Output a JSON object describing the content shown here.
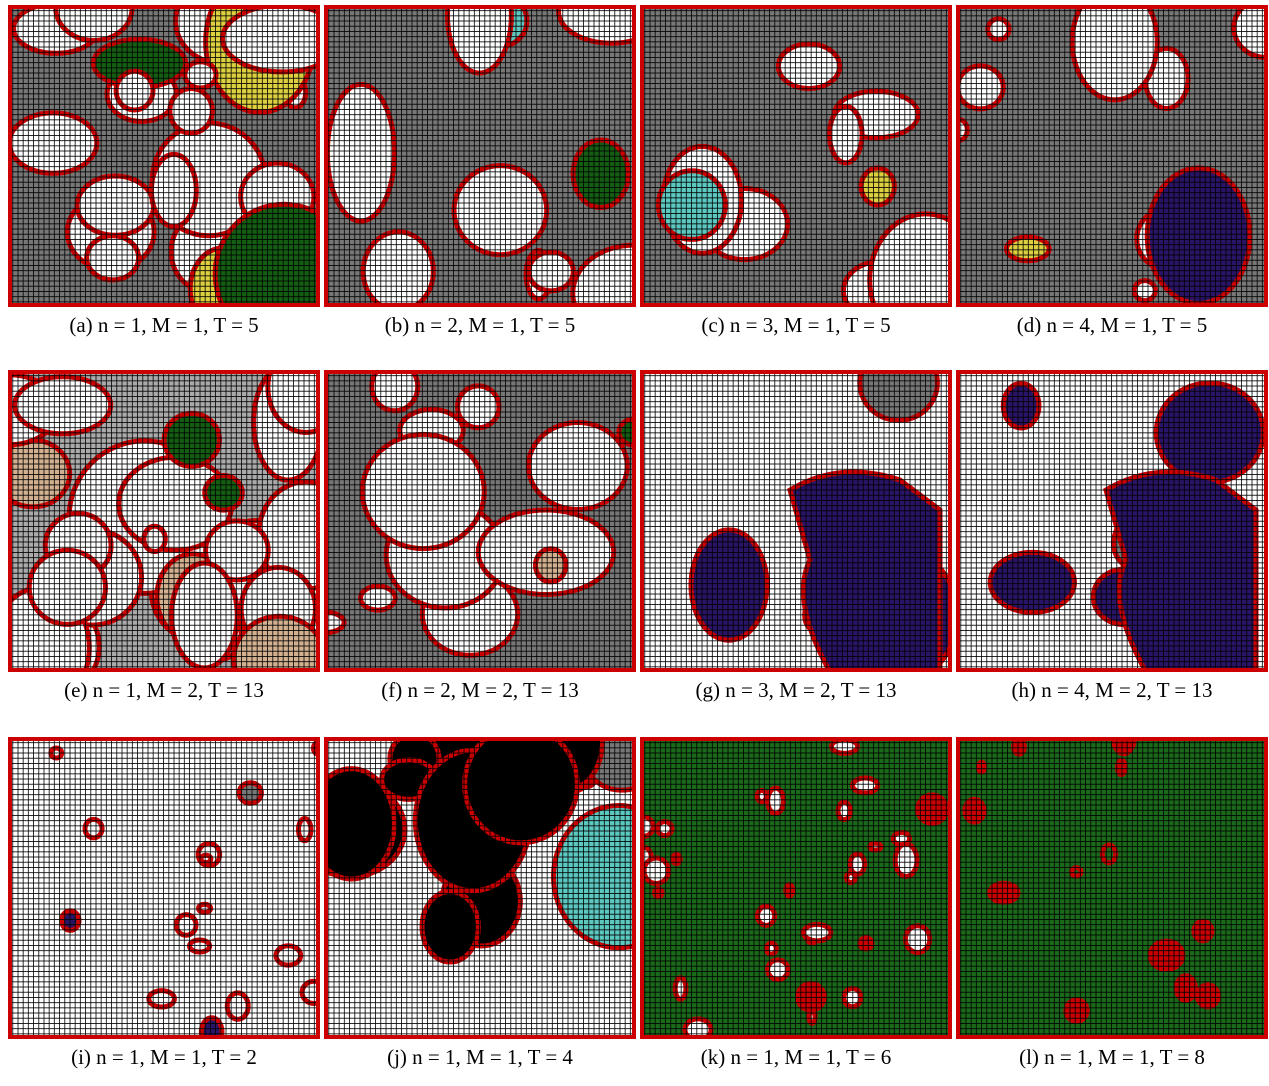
{
  "figure": {
    "panels": [
      {
        "caption": "(a) n = 1, M = 1, T = 5"
      },
      {
        "caption": "(b) n = 2, M = 1, T = 5"
      },
      {
        "caption": "(c) n = 3, M = 1, T = 5"
      },
      {
        "caption": "(d) n = 4, M = 1, T = 5"
      },
      {
        "caption": "(e) n = 1, M = 2, T = 13"
      },
      {
        "caption": "(f) n = 2, M = 2, T = 13"
      },
      {
        "caption": "(g) n = 3, M = 2, T = 13"
      },
      {
        "caption": "(h) n = 4, M = 2, T = 13"
      },
      {
        "caption": "(i) n = 1, M = 1, T = 2"
      },
      {
        "caption": "(j) n = 1, M = 1, T = 4"
      },
      {
        "caption": "(k) n = 1, M = 1, T = 6"
      },
      {
        "caption": "(l) n = 1, M = 1, T = 8"
      }
    ]
  }
}
